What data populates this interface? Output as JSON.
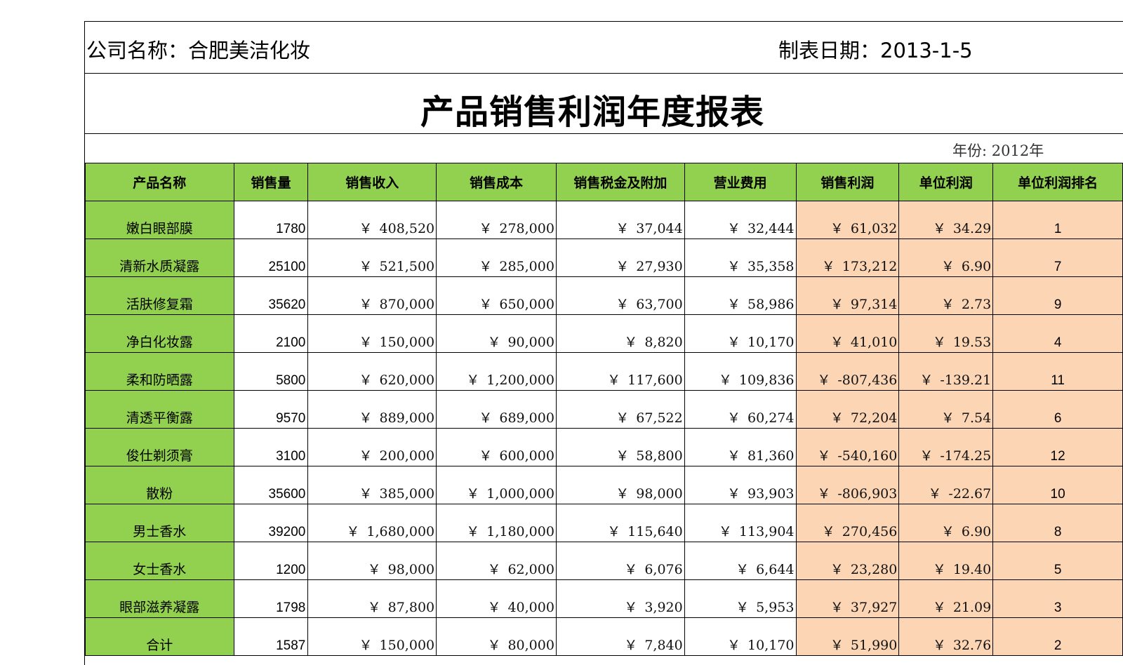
{
  "header": {
    "company": "公司名称：合肥美洁化妆",
    "date": "制表日期：2013-1-5",
    "title": "产品销售利润年度报表",
    "year": "年份: 2012年"
  },
  "colors": {
    "header_green": "#92d050",
    "profit_peach": "#fcd5b4"
  },
  "columns": [
    "产品名称",
    "销售量",
    "销售收入",
    "销售成本",
    "销售税金及附加",
    "营业费用",
    "销售利润",
    "单位利润",
    "单位利润排名"
  ],
  "currency_symbol": "￥",
  "rows": [
    {
      "name": "嫩白眼部膜",
      "qty": "1780",
      "revenue": "408,520",
      "cost": "278,000",
      "tax": "37,044",
      "expense": "32,444",
      "profit": "61,032",
      "unit_profit": "34.29",
      "rank": "1"
    },
    {
      "name": "清新水质凝露",
      "qty": "25100",
      "revenue": "521,500",
      "cost": "285,000",
      "tax": "27,930",
      "expense": "35,358",
      "profit": "173,212",
      "unit_profit": "6.90",
      "rank": "7"
    },
    {
      "name": "活肤修复霜",
      "qty": "35620",
      "revenue": "870,000",
      "cost": "650,000",
      "tax": "63,700",
      "expense": "58,986",
      "profit": "97,314",
      "unit_profit": "2.73",
      "rank": "9"
    },
    {
      "name": "净白化妆露",
      "qty": "2100",
      "revenue": "150,000",
      "cost": "90,000",
      "tax": "8,820",
      "expense": "10,170",
      "profit": "41,010",
      "unit_profit": "19.53",
      "rank": "4"
    },
    {
      "name": "柔和防晒露",
      "qty": "5800",
      "revenue": "620,000",
      "cost": "1,200,000",
      "tax": "117,600",
      "expense": "109,836",
      "profit": "-807,436",
      "unit_profit": "-139.21",
      "rank": "11"
    },
    {
      "name": "清透平衡露",
      "qty": "9570",
      "revenue": "889,000",
      "cost": "689,000",
      "tax": "67,522",
      "expense": "60,274",
      "profit": "72,204",
      "unit_profit": "7.54",
      "rank": "6"
    },
    {
      "name": "俊仕剃须膏",
      "qty": "3100",
      "revenue": "200,000",
      "cost": "600,000",
      "tax": "58,800",
      "expense": "81,360",
      "profit": "-540,160",
      "unit_profit": "-174.25",
      "rank": "12"
    },
    {
      "name": "散粉",
      "qty": "35600",
      "revenue": "385,000",
      "cost": "1,000,000",
      "tax": "98,000",
      "expense": "93,903",
      "profit": "-806,903",
      "unit_profit": "-22.67",
      "rank": "10"
    },
    {
      "name": "男士香水",
      "qty": "39200",
      "revenue": "1,680,000",
      "cost": "1,180,000",
      "tax": "115,640",
      "expense": "113,904",
      "profit": "270,456",
      "unit_profit": "6.90",
      "rank": "8"
    },
    {
      "name": "女士香水",
      "qty": "1200",
      "revenue": "98,000",
      "cost": "62,000",
      "tax": "6,076",
      "expense": "6,644",
      "profit": "23,280",
      "unit_profit": "19.40",
      "rank": "5"
    },
    {
      "name": "眼部滋养凝露",
      "qty": "1798",
      "revenue": "87,800",
      "cost": "40,000",
      "tax": "3,920",
      "expense": "5,953",
      "profit": "37,927",
      "unit_profit": "21.09",
      "rank": "3"
    },
    {
      "name": "合计",
      "qty": "1587",
      "revenue": "150,000",
      "cost": "80,000",
      "tax": "7,840",
      "expense": "10,170",
      "profit": "51,990",
      "unit_profit": "32.76",
      "rank": "2"
    }
  ]
}
